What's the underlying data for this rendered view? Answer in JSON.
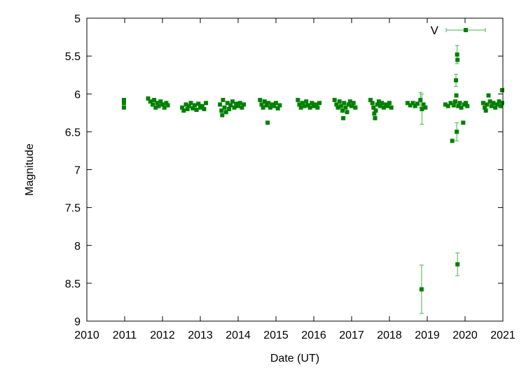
{
  "chart_data": {
    "type": "scatter",
    "xlabel": "Date (UT)",
    "ylabel": "Magnitude",
    "xlim": [
      2010,
      2021
    ],
    "ylim": [
      5,
      9
    ],
    "y_inverted": true,
    "grid": false,
    "legend_position": "top-right",
    "x_ticks": [
      "2010",
      "2011",
      "2012",
      "2013",
      "2014",
      "2015",
      "2016",
      "2017",
      "2018",
      "2019",
      "2020",
      "2021"
    ],
    "y_ticks": [
      "5",
      "5.5",
      "6",
      "6.5",
      "7",
      "7.5",
      "8",
      "8.5",
      "9"
    ],
    "series": [
      {
        "name": "V",
        "color": "#008000",
        "errorbar_color": "#4caf50",
        "marker": "square",
        "points": [
          {
            "x": 2010.98,
            "y": 6.08
          },
          {
            "x": 2010.98,
            "y": 6.12
          },
          {
            "x": 2010.98,
            "y": 6.18
          },
          {
            "x": 2011.62,
            "y": 6.06
          },
          {
            "x": 2011.68,
            "y": 6.1
          },
          {
            "x": 2011.74,
            "y": 6.14
          },
          {
            "x": 2011.78,
            "y": 6.08
          },
          {
            "x": 2011.82,
            "y": 6.18
          },
          {
            "x": 2011.86,
            "y": 6.12
          },
          {
            "x": 2011.9,
            "y": 6.16
          },
          {
            "x": 2011.95,
            "y": 6.1
          },
          {
            "x": 2012.0,
            "y": 6.14
          },
          {
            "x": 2012.05,
            "y": 6.18
          },
          {
            "x": 2012.1,
            "y": 6.12
          },
          {
            "x": 2012.14,
            "y": 6.15
          },
          {
            "x": 2012.52,
            "y": 6.18
          },
          {
            "x": 2012.56,
            "y": 6.22
          },
          {
            "x": 2012.62,
            "y": 6.14
          },
          {
            "x": 2012.66,
            "y": 6.2
          },
          {
            "x": 2012.7,
            "y": 6.16
          },
          {
            "x": 2012.75,
            "y": 6.12
          },
          {
            "x": 2012.8,
            "y": 6.19
          },
          {
            "x": 2012.85,
            "y": 6.15
          },
          {
            "x": 2012.9,
            "y": 6.21
          },
          {
            "x": 2012.95,
            "y": 6.13
          },
          {
            "x": 2013.0,
            "y": 6.18
          },
          {
            "x": 2013.05,
            "y": 6.16
          },
          {
            "x": 2013.1,
            "y": 6.2
          },
          {
            "x": 2013.15,
            "y": 6.12
          },
          {
            "x": 2013.52,
            "y": 6.14
          },
          {
            "x": 2013.56,
            "y": 6.22
          },
          {
            "x": 2013.58,
            "y": 6.28
          },
          {
            "x": 2013.6,
            "y": 6.08
          },
          {
            "x": 2013.64,
            "y": 6.18
          },
          {
            "x": 2013.68,
            "y": 6.24
          },
          {
            "x": 2013.72,
            "y": 6.12
          },
          {
            "x": 2013.76,
            "y": 6.2
          },
          {
            "x": 2013.8,
            "y": 6.15
          },
          {
            "x": 2013.85,
            "y": 6.1
          },
          {
            "x": 2013.9,
            "y": 6.18
          },
          {
            "x": 2013.95,
            "y": 6.13
          },
          {
            "x": 2014.0,
            "y": 6.16
          },
          {
            "x": 2014.05,
            "y": 6.12
          },
          {
            "x": 2014.1,
            "y": 6.18
          },
          {
            "x": 2014.15,
            "y": 6.14
          },
          {
            "x": 2014.58,
            "y": 6.08
          },
          {
            "x": 2014.62,
            "y": 6.14
          },
          {
            "x": 2014.66,
            "y": 6.18
          },
          {
            "x": 2014.7,
            "y": 6.1
          },
          {
            "x": 2014.75,
            "y": 6.15
          },
          {
            "x": 2014.78,
            "y": 6.38
          },
          {
            "x": 2014.8,
            "y": 6.12
          },
          {
            "x": 2014.85,
            "y": 6.18
          },
          {
            "x": 2014.9,
            "y": 6.14
          },
          {
            "x": 2014.95,
            "y": 6.16
          },
          {
            "x": 2015.0,
            "y": 6.12
          },
          {
            "x": 2015.05,
            "y": 6.19
          },
          {
            "x": 2015.1,
            "y": 6.15
          },
          {
            "x": 2015.58,
            "y": 6.08
          },
          {
            "x": 2015.62,
            "y": 6.14
          },
          {
            "x": 2015.66,
            "y": 6.18
          },
          {
            "x": 2015.7,
            "y": 6.12
          },
          {
            "x": 2015.75,
            "y": 6.16
          },
          {
            "x": 2015.8,
            "y": 6.1
          },
          {
            "x": 2015.85,
            "y": 6.15
          },
          {
            "x": 2015.9,
            "y": 6.18
          },
          {
            "x": 2015.95,
            "y": 6.12
          },
          {
            "x": 2016.0,
            "y": 6.16
          },
          {
            "x": 2016.05,
            "y": 6.14
          },
          {
            "x": 2016.1,
            "y": 6.18
          },
          {
            "x": 2016.15,
            "y": 6.12
          },
          {
            "x": 2016.55,
            "y": 6.08
          },
          {
            "x": 2016.6,
            "y": 6.14
          },
          {
            "x": 2016.64,
            "y": 6.18
          },
          {
            "x": 2016.68,
            "y": 6.1
          },
          {
            "x": 2016.72,
            "y": 6.16
          },
          {
            "x": 2016.76,
            "y": 6.22
          },
          {
            "x": 2016.78,
            "y": 6.32
          },
          {
            "x": 2016.8,
            "y": 6.12
          },
          {
            "x": 2016.84,
            "y": 6.18
          },
          {
            "x": 2016.88,
            "y": 6.24
          },
          {
            "x": 2016.92,
            "y": 6.14
          },
          {
            "x": 2016.96,
            "y": 6.1
          },
          {
            "x": 2017.0,
            "y": 6.16
          },
          {
            "x": 2017.05,
            "y": 6.12
          },
          {
            "x": 2017.1,
            "y": 6.18
          },
          {
            "x": 2017.5,
            "y": 6.08
          },
          {
            "x": 2017.55,
            "y": 6.12
          },
          {
            "x": 2017.58,
            "y": 6.18
          },
          {
            "x": 2017.6,
            "y": 6.26
          },
          {
            "x": 2017.62,
            "y": 6.32
          },
          {
            "x": 2017.64,
            "y": 6.22
          },
          {
            "x": 2017.68,
            "y": 6.14
          },
          {
            "x": 2017.72,
            "y": 6.1
          },
          {
            "x": 2017.76,
            "y": 6.16
          },
          {
            "x": 2017.8,
            "y": 6.12
          },
          {
            "x": 2017.85,
            "y": 6.18
          },
          {
            "x": 2017.9,
            "y": 6.14
          },
          {
            "x": 2017.95,
            "y": 6.16
          },
          {
            "x": 2018.0,
            "y": 6.12
          },
          {
            "x": 2018.05,
            "y": 6.18
          },
          {
            "x": 2018.48,
            "y": 6.12
          },
          {
            "x": 2018.55,
            "y": 6.15
          },
          {
            "x": 2018.62,
            "y": 6.12
          },
          {
            "x": 2018.68,
            "y": 6.16
          },
          {
            "x": 2018.74,
            "y": 6.13
          },
          {
            "x": 2018.82,
            "y": 6.08,
            "err": 0.1
          },
          {
            "x": 2018.86,
            "y": 6.2,
            "err": 0.2
          },
          {
            "x": 2018.9,
            "y": 6.14
          },
          {
            "x": 2018.95,
            "y": 6.18
          },
          {
            "x": 2018.85,
            "y": 8.58,
            "err": 0.32
          },
          {
            "x": 2019.48,
            "y": 6.14
          },
          {
            "x": 2019.55,
            "y": 6.16
          },
          {
            "x": 2019.62,
            "y": 6.12
          },
          {
            "x": 2019.66,
            "y": 6.62
          },
          {
            "x": 2019.7,
            "y": 6.15
          },
          {
            "x": 2019.74,
            "y": 6.1
          },
          {
            "x": 2019.76,
            "y": 5.82,
            "err": 0.08
          },
          {
            "x": 2019.77,
            "y": 6.02
          },
          {
            "x": 2019.78,
            "y": 6.5,
            "err": 0.12
          },
          {
            "x": 2019.79,
            "y": 5.48,
            "err": 0.12
          },
          {
            "x": 2019.8,
            "y": 5.55
          },
          {
            "x": 2019.8,
            "y": 8.25,
            "err": 0.15
          },
          {
            "x": 2019.82,
            "y": 6.16
          },
          {
            "x": 2019.86,
            "y": 6.12
          },
          {
            "x": 2019.9,
            "y": 6.18
          },
          {
            "x": 2019.95,
            "y": 6.38
          },
          {
            "x": 2019.98,
            "y": 6.14
          },
          {
            "x": 2020.02,
            "y": 6.12
          },
          {
            "x": 2020.06,
            "y": 6.16
          },
          {
            "x": 2020.48,
            "y": 6.12
          },
          {
            "x": 2020.52,
            "y": 6.18
          },
          {
            "x": 2020.55,
            "y": 6.22
          },
          {
            "x": 2020.58,
            "y": 6.14
          },
          {
            "x": 2020.62,
            "y": 6.02
          },
          {
            "x": 2020.66,
            "y": 6.1
          },
          {
            "x": 2020.7,
            "y": 6.16
          },
          {
            "x": 2020.75,
            "y": 6.12
          },
          {
            "x": 2020.8,
            "y": 6.18
          },
          {
            "x": 2020.85,
            "y": 6.14
          },
          {
            "x": 2020.9,
            "y": 6.1
          },
          {
            "x": 2020.94,
            "y": 6.16
          },
          {
            "x": 2020.98,
            "y": 5.95
          },
          {
            "x": 2020.98,
            "y": 6.12
          }
        ]
      }
    ]
  }
}
